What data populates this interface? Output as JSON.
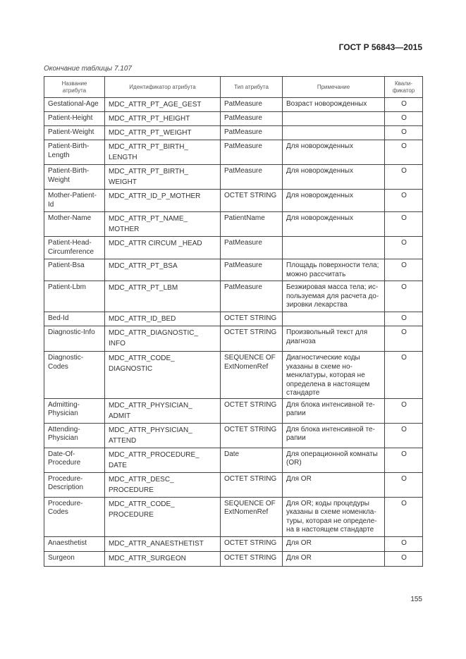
{
  "header": {
    "doc_code": "ГОСТ Р 56843—2015"
  },
  "caption": "Окончание таблицы 7.107",
  "table": {
    "columns": [
      "Название\nатрибута",
      "Идентификатор атрибута",
      "Тип атрибута",
      "Примечание",
      "Квали-\nфикатор"
    ],
    "rows": [
      [
        "Gestational-Age",
        "MDC_ATTR_PT_AGE_GEST",
        "PatMeasure",
        "Возраст новорожденных",
        "O"
      ],
      [
        "Patient-Height",
        "MDC_ATTR_PT_HEIGHT",
        "PatMeasure",
        "",
        "O"
      ],
      [
        "Patient-Weight",
        "MDC_ATTR_PT_WEIGHT",
        "PatMeasure",
        "",
        "O"
      ],
      [
        "Patient-Birth-\nLength",
        "MDC_ATTR_PT_BIRTH_\nLENGTH",
        "PatMeasure",
        "Для новорожденных",
        "O"
      ],
      [
        "Patient-Birth-\nWeight",
        "MDC_ATTR_PT_BIRTH_\nWEIGHT",
        "PatMeasure",
        "Для новорожденных",
        "O"
      ],
      [
        "Mother-Patient-\nId",
        "MDC_ATTR_ID_P_MOTHER",
        "OCTET STRING",
        "Для новорожденных",
        "O"
      ],
      [
        "Mother-Name",
        "MDC_ATTR_PT_NAME_\nMOTHER",
        "PatientName",
        "Для новорожденных",
        "O"
      ],
      [
        "Patient-Head-\nCircumference",
        "MDC_ATTR CIRCUM _HEAD",
        "PatMeasure",
        "",
        "O"
      ],
      [
        "Patient-Bsa",
        "MDC_ATTR_PT_BSA",
        "PatMeasure",
        "Площадь поверхности тела;\nможно рассчитать",
        "O"
      ],
      [
        "Patient-Lbm",
        "MDC_ATTR_PT_LBM",
        "PatMeasure",
        "Безжировая масса тела; ис-\nпользуемая для расчета до-\nзировки лекарства",
        "O"
      ],
      [
        "Bed-Id",
        "MDC_ATTR_ID_BED",
        "OCTET STRING",
        "",
        "O"
      ],
      [
        "Diagnostic-Info",
        "MDC_ATTR_DIAGNOSTIC_\nINFO",
        "OCTET STRING",
        "Произвольный текст для\nдиагноза",
        "O"
      ],
      [
        "Diagnostic-\nCodes",
        "MDC_ATTR_CODE_\nDIAGNOSTIC",
        "SEQUENCE OF\nExtNomenRef",
        "Диагностические коды\nуказаны в схеме но-\nменклатуры, которая не\nопределена в настоящем\nстандарте",
        "O"
      ],
      [
        "Admitting-\nPhysician",
        "MDC_ATTR_PHYSICIAN_\nADMIT",
        "OCTET STRING",
        "Для блока интенсивной те-\nрапии",
        "O"
      ],
      [
        "Attending-\nPhysician",
        "MDC_ATTR_PHYSICIAN_\nATTEND",
        "OCTET STRING",
        "Для блока интенсивной те-\nрапии",
        "O"
      ],
      [
        "Date-Of-\nProcedure",
        "MDC_ATTR_PROCEDURE_\nDATE",
        "Date",
        "Для операционной комнаты\n(OR)",
        "O"
      ],
      [
        "Procedure-\nDescription",
        "MDC_ATTR_DESC_\nPROCEDURE",
        "OCTET STRING",
        "Для OR",
        "O"
      ],
      [
        "Procedure-\nCodes",
        "MDC_ATTR_CODE_\nPROCEDURE",
        "SEQUENCE OF\nExtNomenRef",
        "Для OR; коды процедуры\nуказаны в схеме номенкла-\nтуры, которая не определе-\nна в настоящем стандарте",
        "O"
      ],
      [
        "Anaesthetist",
        "MDC_ATTR_ANAESTHETIST",
        "OCTET STRING",
        "Для OR",
        "O"
      ],
      [
        "Surgeon",
        "MDC_ATTR_SURGEON",
        "OCTET STRING",
        "Для OR",
        "O"
      ]
    ]
  },
  "page_number": "155"
}
